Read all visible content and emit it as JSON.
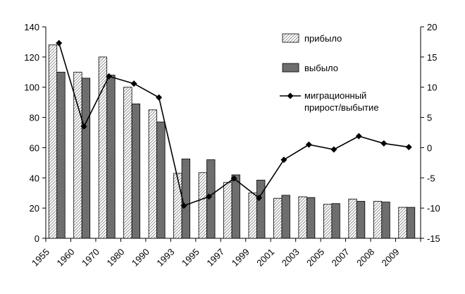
{
  "chart_data": {
    "type": "bar",
    "categories": [
      "1955",
      "1960",
      "1970",
      "1980",
      "1990",
      "1993",
      "1995",
      "1997",
      "1999",
      "2001",
      "2003",
      "2005",
      "2007",
      "2008",
      "2009"
    ],
    "series": [
      {
        "name": "прибыло",
        "axis": "left",
        "kind": "bar",
        "pattern": "diagonal-hatch",
        "values": [
          128,
          110,
          120,
          100,
          85,
          43,
          43.5,
          37,
          30,
          26.5,
          27.5,
          22.5,
          26,
          24.5,
          20.5
        ]
      },
      {
        "name": "выбыло",
        "axis": "left",
        "kind": "bar",
        "pattern": "dense-dots",
        "values": [
          110,
          106,
          108,
          89,
          77,
          52.5,
          52,
          42,
          38.5,
          28.5,
          27,
          23,
          24.5,
          24,
          20.5
        ]
      },
      {
        "name": [
          "миграционный",
          "прирост/выбытие"
        ],
        "axis": "right",
        "kind": "line",
        "marker": "diamond",
        "values": [
          17.3,
          3.5,
          11.8,
          10.6,
          8.3,
          -9.6,
          -8.1,
          -5.1,
          -8.3,
          -2.0,
          0.5,
          -0.3,
          1.9,
          0.7,
          0.1
        ]
      }
    ],
    "y_left": {
      "min": 0,
      "max": 140,
      "step": 20
    },
    "y_right": {
      "min": -15,
      "max": 20,
      "step": 5
    },
    "grid": false,
    "legend_position": "top-right"
  }
}
